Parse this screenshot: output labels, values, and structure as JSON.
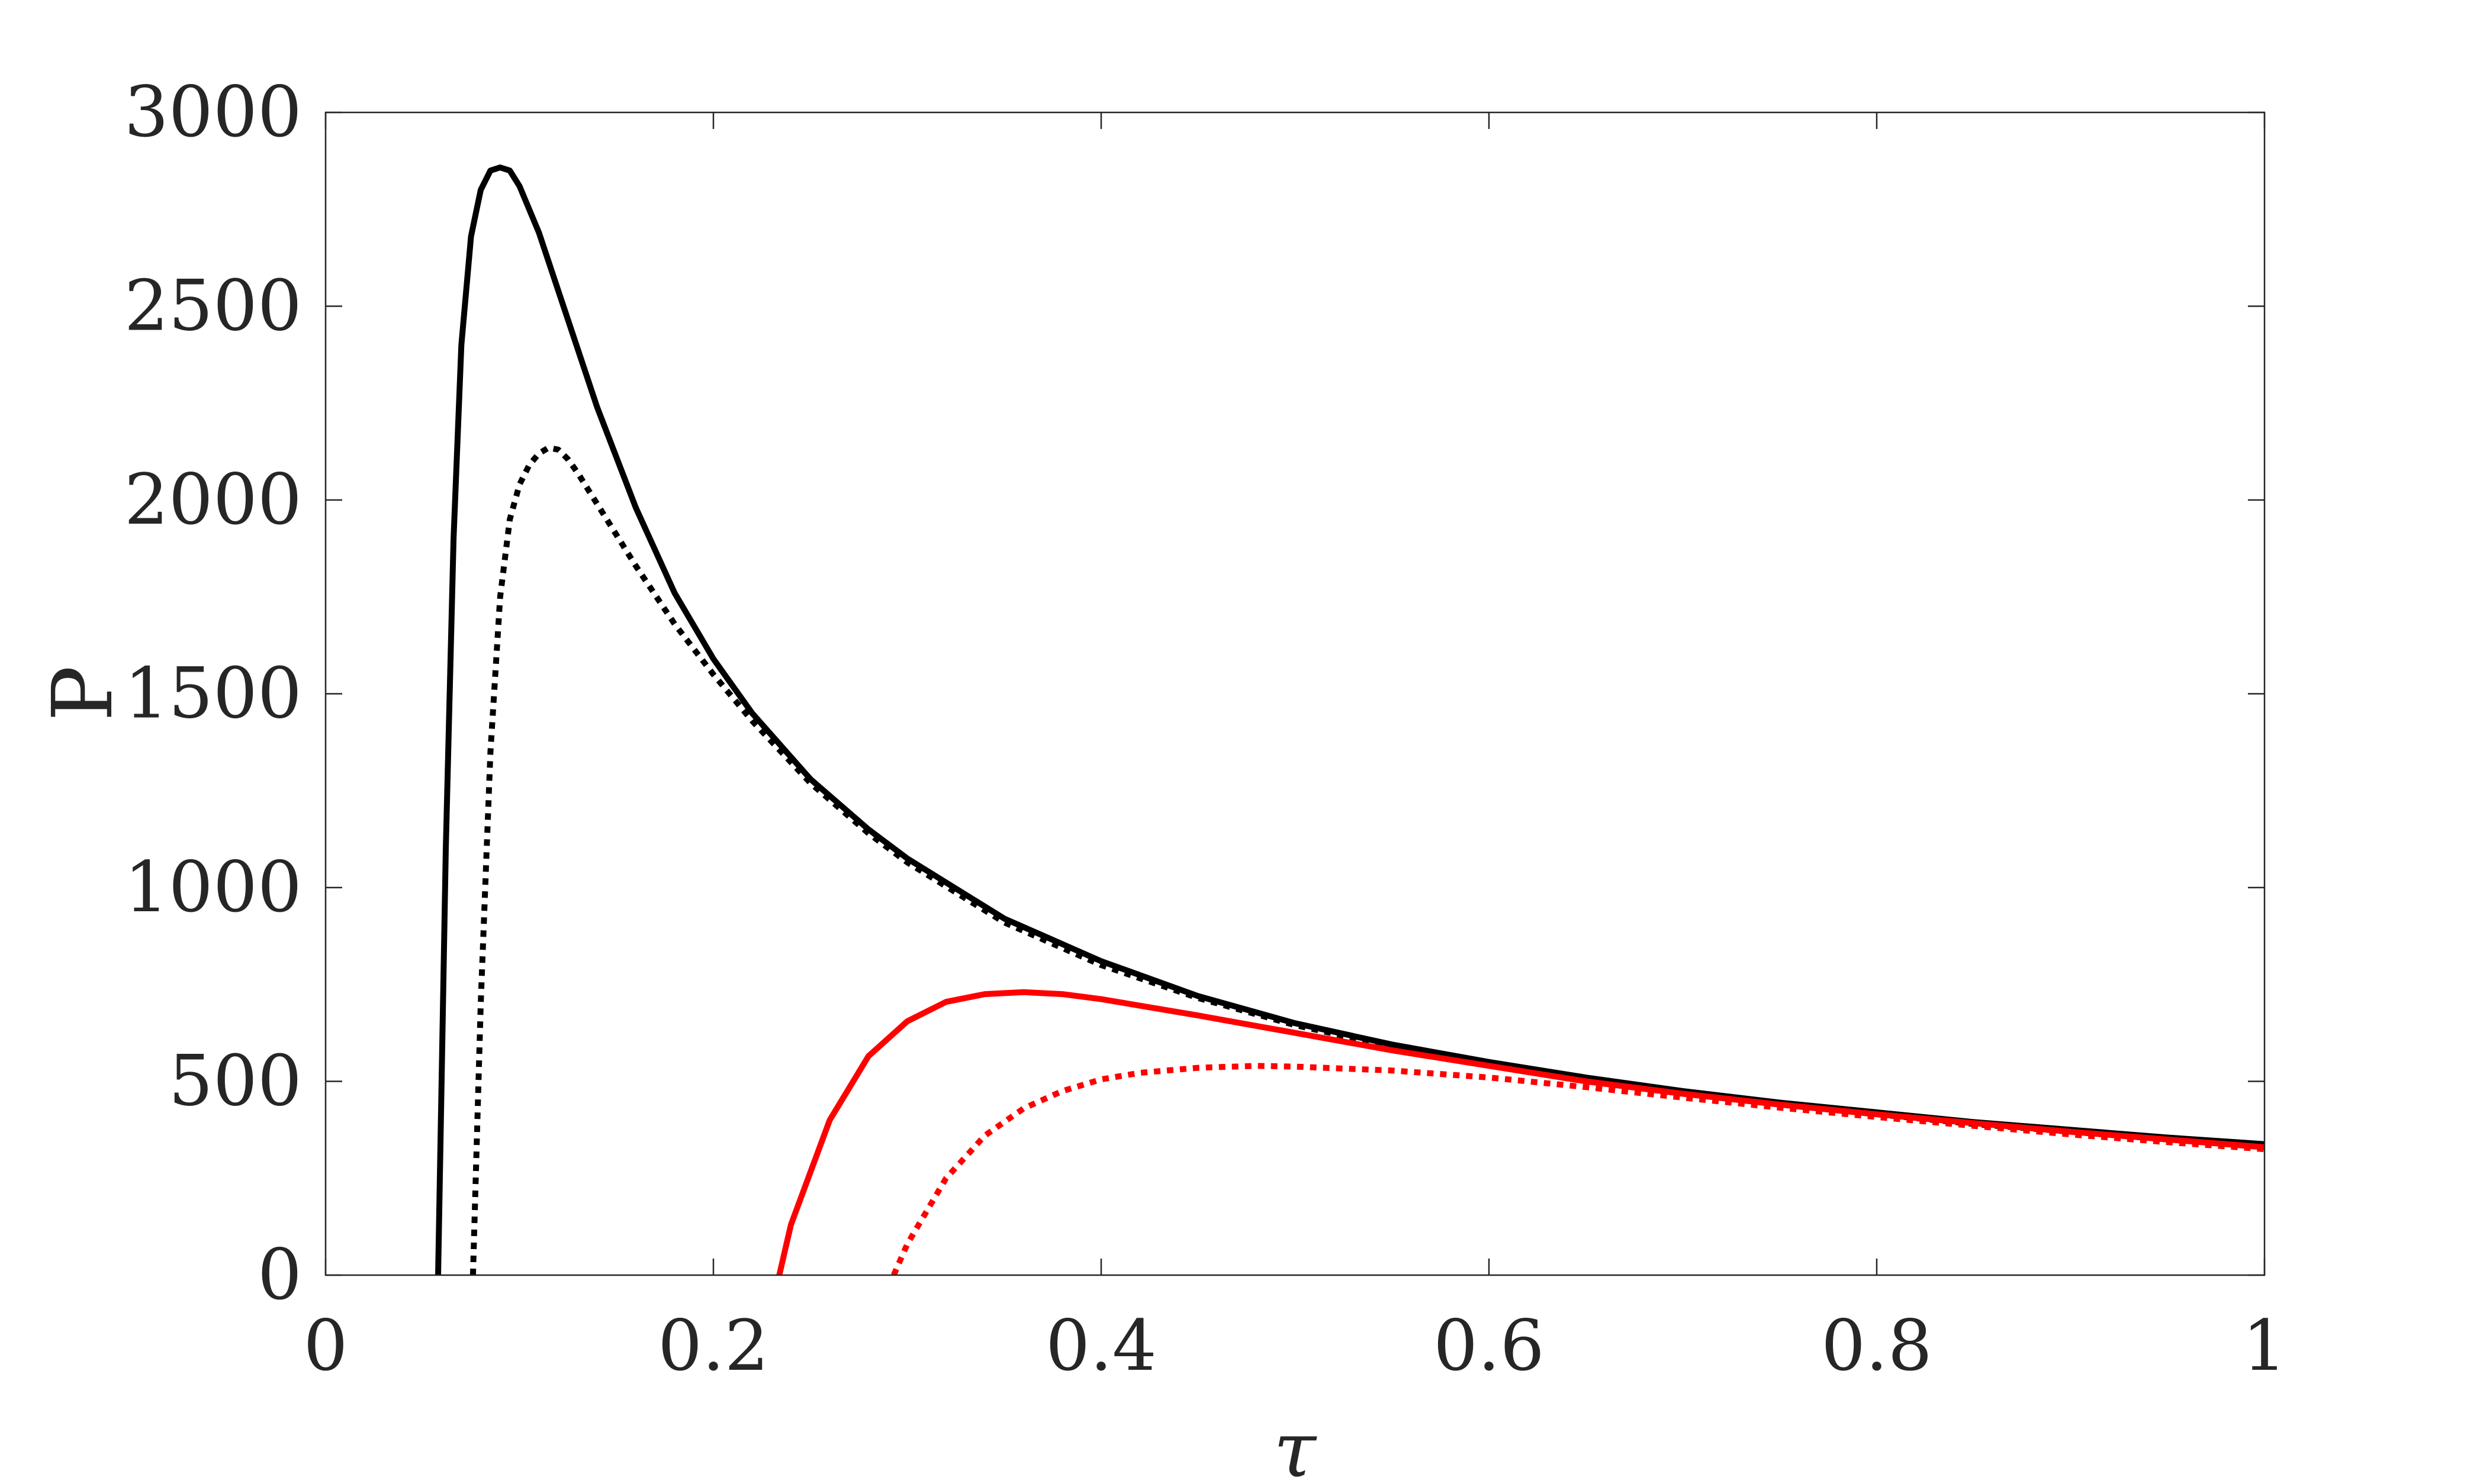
{
  "chart_data": {
    "type": "line",
    "title": "",
    "xlabel": "τ",
    "ylabel": "P",
    "xlim": [
      0,
      1
    ],
    "ylim": [
      0,
      3000
    ],
    "xticks": [
      0,
      0.2,
      0.4,
      0.6,
      0.8,
      1
    ],
    "xtick_labels": [
      "0",
      "0.2",
      "0.4",
      "0.6",
      "0.8",
      "1"
    ],
    "yticks": [
      0,
      500,
      1000,
      1500,
      2000,
      2500,
      3000
    ],
    "ytick_labels": [
      "0",
      "500",
      "1000",
      "1500",
      "2000",
      "2500",
      "3000"
    ],
    "grid": false,
    "legend": "none",
    "series": [
      {
        "color": "#000000",
        "style": "solid",
        "x": [
          0.058,
          0.062,
          0.066,
          0.07,
          0.075,
          0.08,
          0.085,
          0.09,
          0.095,
          0.1,
          0.11,
          0.12,
          0.14,
          0.16,
          0.18,
          0.2,
          0.22,
          0.25,
          0.28,
          0.3,
          0.35,
          0.4,
          0.45,
          0.5,
          0.55,
          0.6,
          0.65,
          0.7,
          0.75,
          0.8,
          0.85,
          0.9,
          0.95,
          1.0
        ],
        "y": [
          0,
          1100,
          1900,
          2400,
          2680,
          2800,
          2850,
          2858,
          2850,
          2810,
          2690,
          2540,
          2240,
          1980,
          1760,
          1590,
          1450,
          1280,
          1150,
          1075,
          920,
          810,
          720,
          650,
          595,
          550,
          510,
          475,
          445,
          420,
          395,
          375,
          355,
          338
        ]
      },
      {
        "color": "#000000",
        "style": "dotted",
        "x": [
          0.076,
          0.08,
          0.085,
          0.09,
          0.095,
          0.1,
          0.105,
          0.11,
          0.115,
          0.12,
          0.125,
          0.13,
          0.14,
          0.16,
          0.18,
          0.2,
          0.22,
          0.25,
          0.28,
          0.3,
          0.35,
          0.4,
          0.45,
          0.5,
          0.55,
          0.6,
          0.65,
          0.7,
          0.75,
          0.8,
          0.85,
          0.9,
          0.95,
          1.0
        ],
        "y": [
          0,
          700,
          1350,
          1750,
          1950,
          2040,
          2090,
          2120,
          2135,
          2130,
          2105,
          2070,
          1990,
          1830,
          1680,
          1550,
          1430,
          1270,
          1140,
          1065,
          910,
          800,
          715,
          645,
          590,
          545,
          505,
          470,
          440,
          415,
          390,
          370,
          350,
          332
        ]
      },
      {
        "color": "#ff0000",
        "style": "solid",
        "x": [
          0.234,
          0.24,
          0.26,
          0.28,
          0.3,
          0.32,
          0.34,
          0.36,
          0.38,
          0.4,
          0.45,
          0.5,
          0.55,
          0.6,
          0.65,
          0.7,
          0.75,
          0.8,
          0.85,
          0.9,
          0.95,
          1.0
        ],
        "y": [
          0,
          130,
          400,
          565,
          655,
          705,
          725,
          730,
          725,
          712,
          670,
          625,
          580,
          540,
          500,
          468,
          440,
          415,
          392,
          370,
          350,
          330
        ]
      },
      {
        "color": "#ff0000",
        "style": "dotted",
        "x": [
          0.293,
          0.3,
          0.32,
          0.34,
          0.36,
          0.38,
          0.4,
          0.42,
          0.45,
          0.48,
          0.5,
          0.55,
          0.6,
          0.65,
          0.7,
          0.75,
          0.8,
          0.85,
          0.9,
          0.95,
          1.0
        ],
        "y": [
          0,
          80,
          250,
          360,
          430,
          475,
          505,
          522,
          535,
          540,
          538,
          528,
          510,
          485,
          458,
          432,
          408,
          385,
          363,
          343,
          325
        ]
      }
    ]
  }
}
